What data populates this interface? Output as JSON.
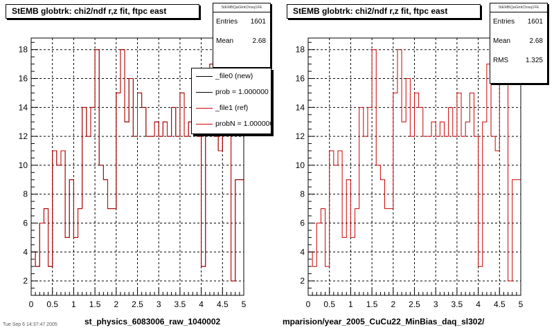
{
  "colors": {
    "new": "#000000",
    "ref": "#cc0000",
    "grid": "#000000",
    "frame": "#000000"
  },
  "pads": [
    {
      "title": "StEMB globtrk: chi2/ndf r,z fit, ftpc east",
      "stats": {
        "name": "StEMBQaGtrkChisq1FE",
        "rows": [
          {
            "label": "Entries",
            "value": "1601"
          },
          {
            "label": "Mean",
            "value": "2.68"
          }
        ]
      },
      "legend": {
        "entries": [
          "_file0 (new)",
          "prob = 1.000000",
          "_file1 (ref)",
          "probN = 1.000000"
        ]
      },
      "file_label": "st_physics_6083006_raw_1040002"
    },
    {
      "title": "StEMB globtrk: chi2/ndf r,z fit, ftpc east",
      "stats": {
        "name": "StEMBQaGtrkChisq1FE",
        "rows": [
          {
            "label": "Entries",
            "value": "1601"
          },
          {
            "label": "Mean",
            "value": "2.68"
          },
          {
            "label": "RMS",
            "value": "1.325"
          }
        ]
      },
      "file_label": "mparision/year_2005_CuCu22_MinBias_daq_sl302/"
    }
  ],
  "footer": "Tue Sep  6 14:37:47 2005",
  "chart_data": [
    {
      "type": "histogram",
      "title": "StEMB globtrk: chi2/ndf r,z fit, ftpc east",
      "xlim": [
        0,
        5
      ],
      "ylim": [
        1.0,
        18.8
      ],
      "xticks": [
        "0",
        "0.5",
        "1",
        "1.5",
        "2",
        "2.5",
        "3",
        "3.5",
        "4",
        "4.5",
        "5"
      ],
      "yticks": [
        "2",
        "4",
        "6",
        "8",
        "10",
        "12",
        "14",
        "16",
        "18"
      ],
      "grid": true,
      "bin_width": 0.1,
      "series": [
        {
          "name": "_file0 (new)",
          "color": "#000000",
          "values": [
            4,
            3,
            6,
            7,
            3,
            11,
            10,
            11,
            5,
            9,
            5,
            7,
            14,
            12,
            14,
            18,
            10,
            9,
            7,
            7,
            15,
            18,
            13,
            16,
            12,
            15,
            14,
            12,
            12,
            13,
            12,
            13,
            12,
            14,
            12,
            15,
            12,
            13,
            15,
            12,
            3,
            13,
            17,
            12,
            11,
            16,
            16,
            2,
            9,
            9
          ]
        },
        {
          "name": "_file1 (ref)",
          "color": "#cc0000",
          "values": [
            4,
            3,
            6,
            7,
            3,
            11,
            10,
            11,
            5,
            9,
            5,
            7,
            14,
            12,
            14,
            18,
            10,
            9,
            7,
            7,
            15,
            18,
            13,
            16,
            12,
            15,
            14,
            12,
            12,
            13,
            12,
            13,
            12,
            14,
            12,
            15,
            12,
            13,
            15,
            12,
            3,
            13,
            17,
            12,
            11,
            16,
            16,
            2,
            9,
            9
          ]
        }
      ]
    },
    {
      "type": "histogram",
      "title": "StEMB globtrk: chi2/ndf r,z fit, ftpc east",
      "xlim": [
        0,
        5
      ],
      "ylim": [
        1.0,
        18.8
      ],
      "xticks": [
        "0",
        "0.5",
        "1",
        "1.5",
        "2",
        "2.5",
        "3",
        "3.5",
        "4",
        "4.5",
        "5"
      ],
      "yticks": [
        "2",
        "4",
        "6",
        "8",
        "10",
        "12",
        "14",
        "16",
        "18"
      ],
      "grid": true,
      "bin_width": 0.1,
      "series": [
        {
          "name": "_file1 (ref)",
          "color": "#cc0000",
          "values": [
            4,
            3,
            6,
            7,
            3,
            11,
            10,
            11,
            5,
            9,
            5,
            7,
            14,
            12,
            14,
            18,
            10,
            9,
            7,
            7,
            15,
            18,
            13,
            16,
            12,
            15,
            14,
            12,
            12,
            13,
            12,
            13,
            12,
            14,
            12,
            15,
            12,
            13,
            15,
            12,
            3,
            13,
            17,
            12,
            11,
            16,
            16,
            2,
            9,
            9
          ]
        }
      ]
    }
  ]
}
